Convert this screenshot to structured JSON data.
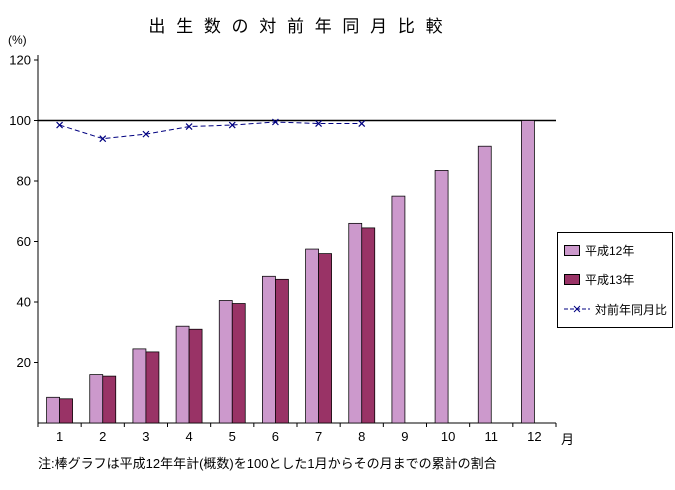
{
  "title": "出 生 数 の 対 前 年 同 月 比 較",
  "axes": {
    "y_unit": "(%)",
    "x_unit": "月"
  },
  "note": "注:棒グラフは平成12年年計(概数)を100とした1月からその月までの累計の割合",
  "legend": [
    {
      "label": "平成12年",
      "swatch": "bar",
      "color": "#cc99cc"
    },
    {
      "label": "平成13年",
      "swatch": "bar",
      "color": "#993366"
    },
    {
      "label": "対前年同月比",
      "swatch": "line",
      "color": "#000080"
    }
  ],
  "chart_data": {
    "type": "bar",
    "title": "出生数の対前年同月比較",
    "ylabel": "(%)",
    "xlabel": "月",
    "categories": [
      1,
      2,
      3,
      4,
      5,
      6,
      7,
      8,
      9,
      10,
      11,
      12
    ],
    "yticks": [
      20,
      40,
      60,
      80,
      100,
      120
    ],
    "ylim": [
      0,
      125
    ],
    "reference_line": 100,
    "grid": false,
    "legend_position": "right",
    "series": [
      {
        "name": "平成12年",
        "type": "bar",
        "color": "#cc99cc",
        "values": [
          8.5,
          16,
          24.5,
          32,
          40.5,
          48.5,
          57.5,
          66,
          75,
          83.5,
          91.5,
          100
        ]
      },
      {
        "name": "平成13年",
        "type": "bar",
        "color": "#993366",
        "values": [
          8,
          15.5,
          23.5,
          31,
          39.5,
          47.5,
          56,
          64.5,
          null,
          null,
          null,
          null
        ]
      },
      {
        "name": "対前年同月比",
        "type": "line",
        "color": "#000080",
        "marker": "x",
        "values": [
          98.5,
          94,
          95.5,
          98,
          98.5,
          99.5,
          99,
          99,
          null,
          null,
          null,
          null
        ]
      }
    ]
  }
}
